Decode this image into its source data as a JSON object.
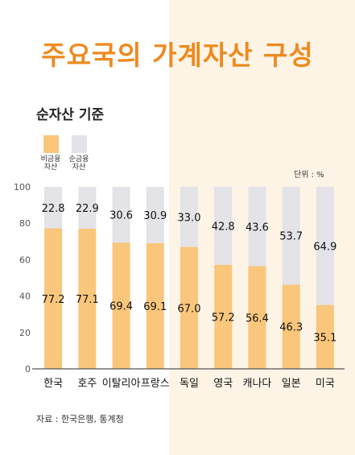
{
  "chart_data": {
    "type": "bar",
    "stacked": true,
    "title": "주요국의 가계자산 구성",
    "subtitle": "순자산 기준",
    "unit": "단위 : %",
    "source": "자료 : 한국은행, 통계청",
    "categories": [
      "한국",
      "호주",
      "이탈리아",
      "프랑스",
      "독일",
      "영국",
      "캐나다",
      "일본",
      "미국"
    ],
    "series": [
      {
        "name": "비금융\n자산",
        "color": "#f9c67c",
        "values": [
          77.2,
          77.1,
          69.4,
          69.1,
          67.0,
          57.2,
          56.4,
          46.3,
          35.1
        ]
      },
      {
        "name": "순금융\n자산",
        "color": "#e3e3e8",
        "values": [
          22.8,
          22.9,
          30.6,
          30.9,
          33.0,
          42.8,
          43.6,
          53.7,
          64.9
        ]
      }
    ],
    "value_labels": {
      "nonfinancial": [
        "77.2",
        "77.1",
        "69.4",
        "69.1",
        "67.0",
        "57.2",
        "56.4",
        "46.3",
        "35.1"
      ],
      "financial": [
        "22.8",
        "22.9",
        "30.6",
        "30.9",
        "33.0",
        "42.8",
        "43.6",
        "53.7",
        "64.9"
      ]
    },
    "y_ticks": [
      "0",
      "20",
      "40",
      "60",
      "80",
      "100"
    ],
    "ylim": [
      0,
      100
    ],
    "grid": false,
    "legend": "top-left"
  }
}
